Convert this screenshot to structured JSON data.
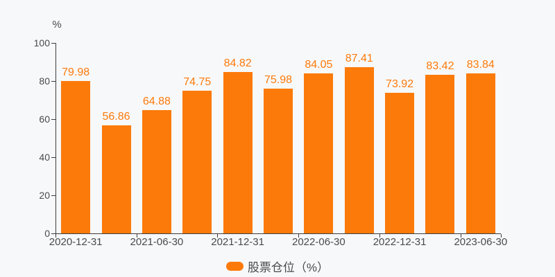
{
  "colors": {
    "background": "#f7f8fa",
    "bar": "#fc7a0a",
    "value_label": "#fc7a0a",
    "axis_line": "#3c3c3c",
    "axis_text": "#4a4a4a",
    "legend_text": "#4a4a4a"
  },
  "y_axis": {
    "unit_label": "%"
  },
  "legend": {
    "label": "股票仓位（%）"
  },
  "chart_data": {
    "type": "bar",
    "title": "",
    "xlabel": "",
    "ylabel": "%",
    "ylim": [
      0,
      100
    ],
    "yticks": [
      0,
      20,
      40,
      60,
      80,
      100
    ],
    "grid": false,
    "legend_position": "bottom",
    "series_name": "股票仓位（%）",
    "categories": [
      "2020-12-31",
      "",
      "2021-06-30",
      "",
      "2021-12-31",
      "",
      "2022-06-30",
      "",
      "2022-12-31",
      "",
      "2023-06-30"
    ],
    "values": [
      79.98,
      56.86,
      64.88,
      74.75,
      84.82,
      75.98,
      84.05,
      87.41,
      73.92,
      83.42,
      83.84
    ],
    "value_labels": [
      "79.98",
      "56.86",
      "64.88",
      "74.75",
      "84.82",
      "75.98",
      "84.05",
      "87.41",
      "73.92",
      "83.42",
      "83.84"
    ],
    "x_label_every": 2
  }
}
